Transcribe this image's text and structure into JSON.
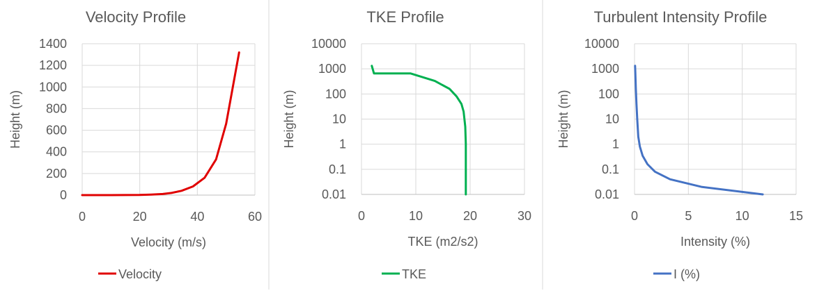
{
  "chart_data": [
    {
      "type": "line",
      "title": "Velocity Profile",
      "xlabel": "Velocity (m/s)",
      "ylabel": "Height (m)",
      "xlim": [
        0,
        60
      ],
      "ylim": [
        0,
        1400
      ],
      "yscale": "linear",
      "xticks": [
        "0",
        "20",
        "40",
        "60"
      ],
      "yticks": [
        "0",
        "200",
        "400",
        "600",
        "800",
        "1000",
        "1200",
        "1400"
      ],
      "grid": true,
      "legend_position": "bottom",
      "series": [
        {
          "name": "Velocity",
          "color": "#E00000",
          "x": [
            0,
            10,
            20,
            24,
            28,
            31,
            34.5,
            38.5,
            42.5,
            46.5,
            50,
            54.5
          ],
          "y": [
            0.01,
            0.1,
            1,
            5,
            10,
            20,
            40,
            80,
            160,
            330,
            660,
            1320
          ]
        }
      ]
    },
    {
      "type": "line",
      "title": "TKE Profile",
      "xlabel": "TKE (m2/s2)",
      "ylabel": "Height (m)",
      "xlim": [
        0,
        30
      ],
      "ylim": [
        0.01,
        10000
      ],
      "yscale": "log",
      "xticks": [
        "0",
        "10",
        "20",
        "30"
      ],
      "yticks": [
        "0.01",
        "0.1",
        "1",
        "10",
        "100",
        "1000",
        "10000"
      ],
      "grid": true,
      "legend_position": "bottom",
      "series": [
        {
          "name": "TKE",
          "color": "#00B050",
          "x": [
            19.2,
            19.2,
            19.2,
            19.1,
            18.8,
            18.4,
            17.5,
            16.2,
            13.5,
            9.0,
            2.3,
            1.9
          ],
          "y": [
            0.01,
            0.1,
            1,
            5,
            20,
            40,
            80,
            160,
            330,
            660,
            660,
            1320
          ]
        }
      ]
    },
    {
      "type": "line",
      "title": "Turbulent Intensity Profile",
      "xlabel": "Intensity (%)",
      "ylabel": "Height (m)",
      "xlim": [
        0,
        15
      ],
      "ylim": [
        0.01,
        10000
      ],
      "yscale": "log",
      "xticks": [
        "0",
        "5",
        "10",
        "15"
      ],
      "yticks": [
        "0.01",
        "0.1",
        "1",
        "10",
        "100",
        "1000",
        "10000"
      ],
      "grid": true,
      "legend_position": "bottom",
      "series": [
        {
          "name": "I (%)",
          "color": "#4472C4",
          "x": [
            11.9,
            6.2,
            3.3,
            1.9,
            1.2,
            0.75,
            0.5,
            0.35,
            0.25,
            0.18,
            0.12,
            0.08,
            0.05
          ],
          "y": [
            0.01,
            0.02,
            0.04,
            0.08,
            0.16,
            0.35,
            0.8,
            2,
            10,
            40,
            160,
            660,
            1320
          ]
        }
      ]
    }
  ]
}
